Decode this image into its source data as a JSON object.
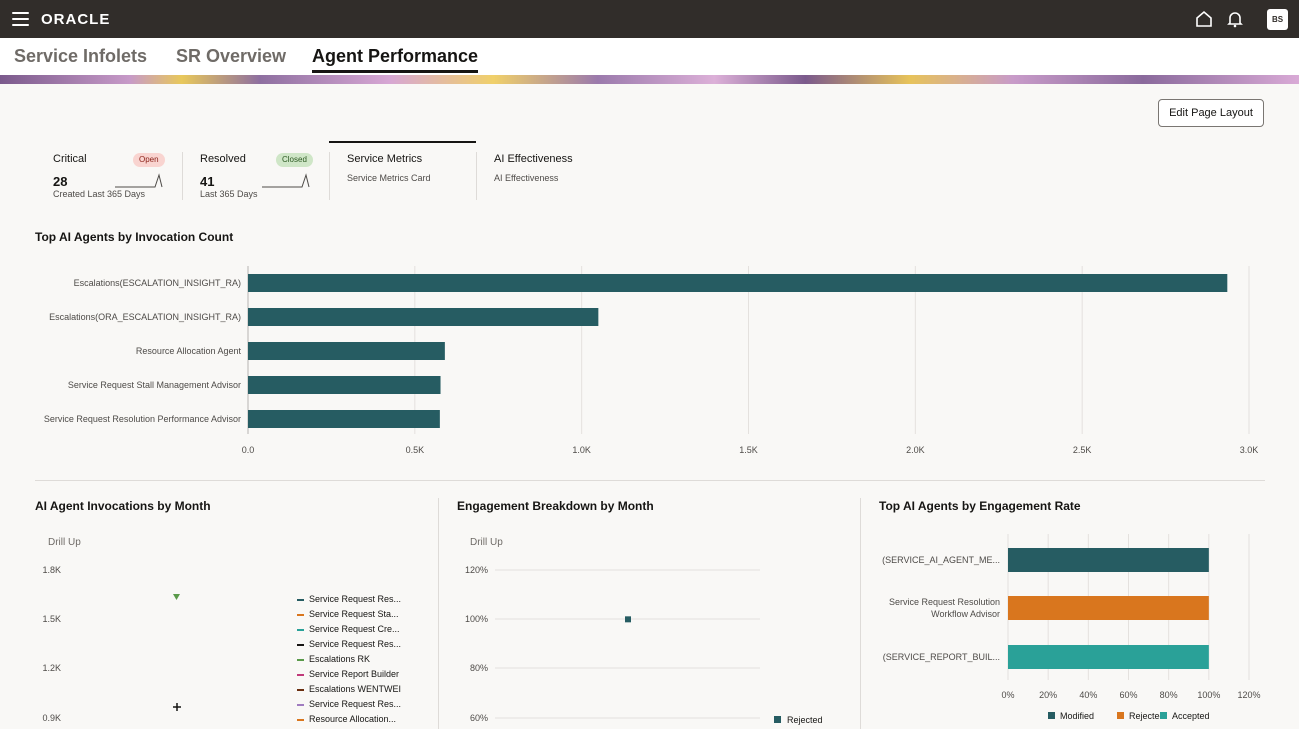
{
  "header": {
    "logo": "ORACLE",
    "avatar": "BS"
  },
  "tabs": [
    {
      "label": "Service Infolets"
    },
    {
      "label": "SR Overview"
    },
    {
      "label": "Agent Performance"
    }
  ],
  "edit_button": "Edit Page Layout",
  "cards": {
    "critical": {
      "title": "Critical",
      "badge": "Open",
      "value": "28",
      "label": "Created Last 365 Days"
    },
    "resolved": {
      "title": "Resolved",
      "badge": "Closed",
      "value": "41",
      "label": "Last 365 Days"
    },
    "service_metrics": {
      "title": "Service Metrics",
      "sub": "Service Metrics Card"
    },
    "ai_effectiveness": {
      "title": "AI Effectiveness",
      "sub": "AI Effectiveness"
    }
  },
  "sections": {
    "top_agents": "Top AI Agents by Invocation Count",
    "by_month": "AI Agent Invocations by Month",
    "engagement": "Engagement Breakdown by Month",
    "engagement_rate": "Top AI Agents by Engagement Rate",
    "drill_up": "Drill Up"
  },
  "chart_data": [
    {
      "type": "bar",
      "orientation": "horizontal",
      "title": "Top AI Agents by Invocation Count",
      "categories": [
        "Escalations(ESCALATION_INSIGHT_RA)",
        "Escalations(ORA_ESCALATION_INSIGHT_RA)",
        "Resource Allocation Agent",
        "Service Request Stall Management Advisor",
        "Service Request Resolution Performance Advisor"
      ],
      "values": [
        2935,
        1050,
        590,
        577,
        575
      ],
      "xlim": [
        0,
        3000
      ],
      "ticks": [
        "0.0",
        "0.5K",
        "1.0K",
        "1.5K",
        "2.0K",
        "2.5K",
        "3.0K"
      ],
      "color": "#265c62"
    },
    {
      "type": "scatter",
      "title": "AI Agent Invocations by Month",
      "yticks": [
        "1.8K",
        "1.5K",
        "1.2K",
        "0.9K"
      ],
      "legend": [
        {
          "name": "Service Request Res...",
          "color": "#265c62"
        },
        {
          "name": "Service Request Sta...",
          "color": "#d9761e"
        },
        {
          "name": "Service Request Cre...",
          "color": "#2aa198"
        },
        {
          "name": "Service Request Res...",
          "color": "#161513"
        },
        {
          "name": "Escalations RK",
          "color": "#5a9a4a"
        },
        {
          "name": "Service Report Builder",
          "color": "#c0397a"
        },
        {
          "name": "Escalations WENTWEI",
          "color": "#6b2f10"
        },
        {
          "name": "Service Request Res...",
          "color": "#a07cc0"
        },
        {
          "name": "Resource Allocation...",
          "color": "#d9761e"
        }
      ]
    },
    {
      "type": "scatter",
      "title": "Engagement Breakdown by Month",
      "yticks": [
        "120%",
        "100%",
        "80%",
        "60%"
      ],
      "series": [
        {
          "name": "Rejected",
          "values": [
            100
          ],
          "color": "#265c62"
        }
      ]
    },
    {
      "type": "bar",
      "orientation": "horizontal",
      "title": "Top AI Agents by Engagement Rate",
      "categories": [
        "(SERVICE_AI_AGENT_ME...",
        "Service Request Resolution Workflow Advisor",
        "(SERVICE_REPORT_BUIL..."
      ],
      "values": [
        100,
        100,
        100
      ],
      "colors": [
        "#265c62",
        "#d9761e",
        "#2aa198"
      ],
      "xticks": [
        "0%",
        "20%",
        "40%",
        "60%",
        "80%",
        "100%",
        "120%"
      ],
      "legend": [
        {
          "name": "Modified",
          "color": "#265c62"
        },
        {
          "name": "Rejected",
          "color": "#d9761e"
        },
        {
          "name": "Accepted",
          "color": "#2aa198"
        }
      ]
    }
  ]
}
